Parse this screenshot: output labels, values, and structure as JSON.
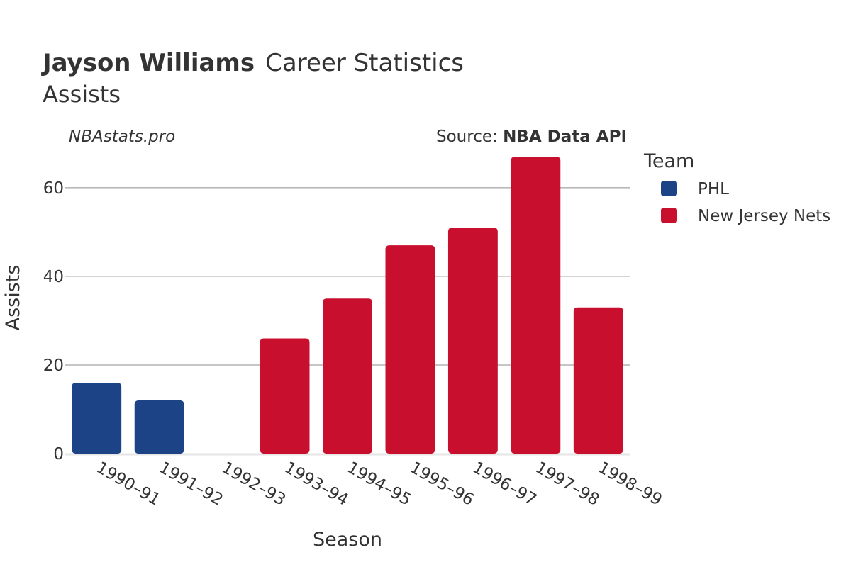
{
  "chart_data": {
    "type": "bar",
    "title_bold": "Jayson Williams",
    "title_rest": "Career Statistics",
    "subtitle": "Assists",
    "credit": "NBAstats.pro",
    "source_prefix": "Source: ",
    "source_name": "NBA Data API",
    "xlabel": "Season",
    "ylabel": "Assists",
    "ylim": [
      0,
      70
    ],
    "yticks": [
      0,
      20,
      40,
      60
    ],
    "grid": true,
    "legend_title": "Team",
    "legend_position": "right",
    "categories": [
      "1990–91",
      "1991–92",
      "1992–93",
      "1993–94",
      "1994–95",
      "1995–96",
      "1996–97",
      "1997–98",
      "1998–99"
    ],
    "series": [
      {
        "name": "PHL",
        "color": "#1c4386",
        "values": [
          16,
          12,
          0,
          null,
          null,
          null,
          null,
          null,
          null
        ]
      },
      {
        "name": "New Jersey Nets",
        "color": "#c8102e",
        "values": [
          null,
          null,
          null,
          26,
          35,
          47,
          51,
          67,
          33
        ]
      }
    ]
  }
}
